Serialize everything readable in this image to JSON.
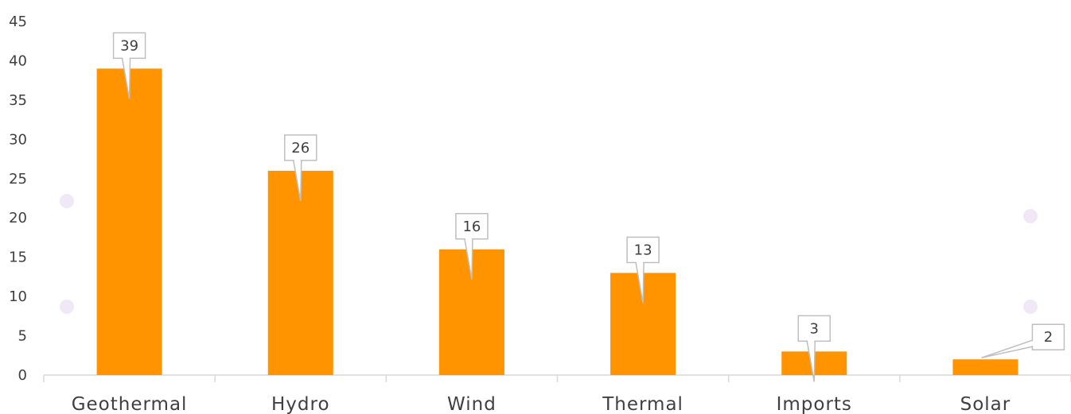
{
  "colors": {
    "bar": "#ff9400",
    "axis": "#d9d9d9",
    "callout_border": "#bfbfbf",
    "text": "#404040",
    "dot": "#f1e8f7"
  },
  "chart_data": {
    "type": "bar",
    "categories": [
      "Geothermal",
      "Hydro",
      "Wind",
      "Thermal",
      "Imports",
      "Solar"
    ],
    "values": [
      39,
      26,
      16,
      13,
      3,
      2
    ],
    "data_labels": [
      "39",
      "26",
      "16",
      "13",
      "3",
      "2"
    ],
    "title": "",
    "xlabel": "",
    "ylabel": "",
    "ylim": [
      0,
      45
    ],
    "yticks": [
      0,
      5,
      10,
      15,
      20,
      25,
      30,
      35,
      40,
      45
    ],
    "grid": false,
    "legend": "none"
  }
}
